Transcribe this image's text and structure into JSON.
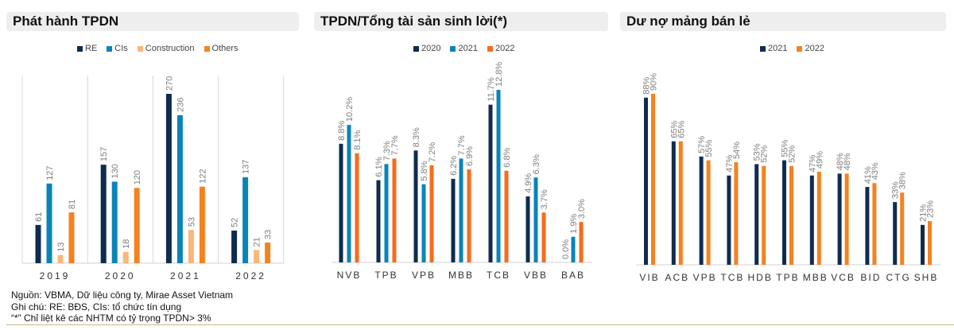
{
  "chart_data": [
    {
      "type": "bar",
      "title": "Phát hành TPDN",
      "categories": [
        "2019",
        "2020",
        "2021",
        "2022"
      ],
      "series": [
        {
          "name": "RE",
          "color": "#0f2c4f",
          "values": [
            61,
            157,
            270,
            52
          ]
        },
        {
          "name": "CIs",
          "color": "#0a84b8",
          "values": [
            127,
            130,
            236,
            137
          ]
        },
        {
          "name": "Construction",
          "color": "#f9b77a",
          "values": [
            13,
            18,
            53,
            21
          ]
        },
        {
          "name": "Others",
          "color": "#f5821f",
          "values": [
            81,
            120,
            122,
            33
          ]
        }
      ],
      "labels": [
        [
          "61",
          "157",
          "270",
          "52"
        ],
        [
          "127",
          "130",
          "236",
          "137"
        ],
        [
          "13",
          "18",
          "53",
          "21"
        ],
        [
          "81",
          "120",
          "122",
          "33"
        ]
      ],
      "legend": "top",
      "grid": "vertical separators"
    },
    {
      "type": "bar",
      "title": "TPDN/Tổng tài sản sinh lời(*)",
      "categories": [
        "NVB",
        "TPB",
        "VPB",
        "MBB",
        "TCB",
        "VBB",
        "BAB"
      ],
      "series": [
        {
          "name": "2020",
          "color": "#0f2c4f",
          "values": [
            8.8,
            6.1,
            8.3,
            6.2,
            11.7,
            4.9,
            0.0
          ]
        },
        {
          "name": "2021",
          "color": "#0a84b8",
          "values": [
            10.2,
            7.3,
            5.8,
            7.7,
            12.8,
            6.3,
            1.9
          ]
        },
        {
          "name": "2022",
          "color": "#f96b1b",
          "values": [
            8.1,
            7.7,
            7.2,
            6.9,
            6.8,
            3.7,
            3.0
          ]
        }
      ],
      "labels": [
        [
          "8.8%",
          "6.1%",
          "8.3%",
          "6.2%",
          "11.7%",
          "4.9%",
          "0.0%"
        ],
        [
          "10.2%",
          "7.3%",
          "5.8%",
          "7.7%",
          "12.8%",
          "6.3%",
          "1.9%"
        ],
        [
          "8.1%",
          "7.7%",
          "7.2%",
          "6.9%",
          "6.8%",
          "3.7%",
          "3.0%"
        ]
      ],
      "legend": "top"
    },
    {
      "type": "bar",
      "title": "Dư nợ mảng bán lẻ",
      "categories": [
        "VIB",
        "ACB",
        "VPB",
        "TCB",
        "HDB",
        "TPB",
        "MBB",
        "VCB",
        "BID",
        "CTG",
        "SHB"
      ],
      "series": [
        {
          "name": "2021",
          "color": "#0f2c4f",
          "values": [
            88,
            65,
            57,
            47,
            53,
            55,
            47,
            48,
            41,
            33,
            21
          ]
        },
        {
          "name": "2022",
          "color": "#f5821f",
          "values": [
            90,
            65,
            55,
            54,
            52,
            52,
            49,
            48,
            43,
            38,
            23
          ]
        }
      ],
      "labels": [
        [
          "88%",
          "65%",
          "57%",
          "47%",
          "53%",
          "55%",
          "47%",
          "48%",
          "41%",
          "33%",
          "21%"
        ],
        [
          "90%",
          "65%",
          "55%",
          "54%",
          "52%",
          "52%",
          "49%",
          "48%",
          "43%",
          "38%",
          "23%"
        ]
      ],
      "legend": "top"
    }
  ],
  "notes": {
    "source": "Nguồn: VBMA, Dữ liệu công ty, Mirae Asset Vietnam",
    "note": "Ghi chú:  RE: BĐS, CIs: tổ chức tín dụng",
    "footnote": "“*” Chỉ liệt kê các NHTM có tỷ trọng TPDN> 3%"
  }
}
